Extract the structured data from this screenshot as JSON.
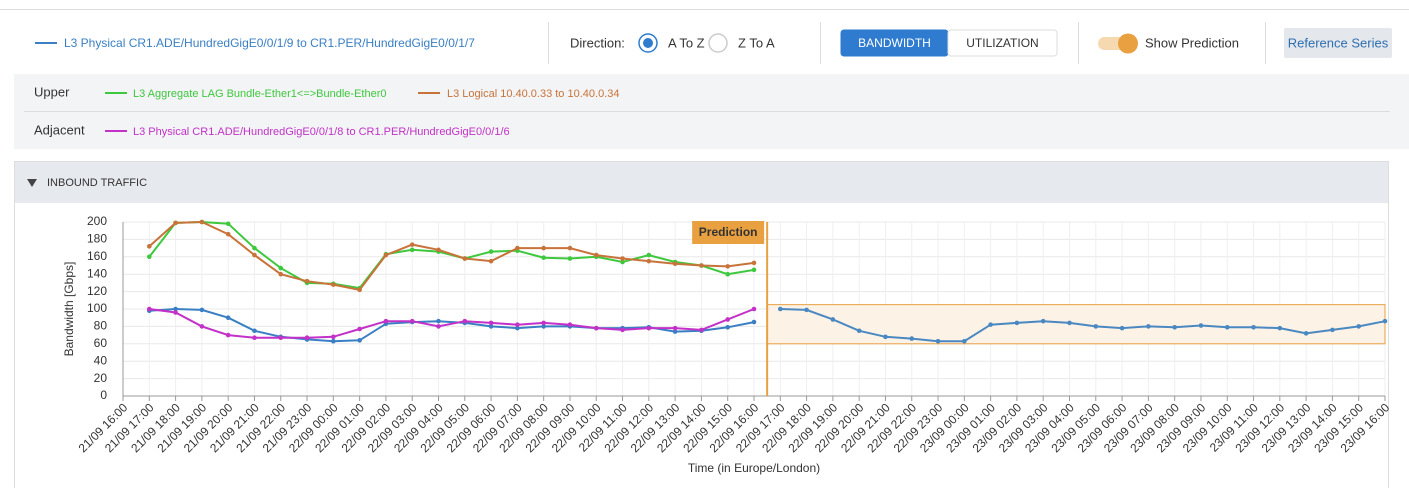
{
  "toolbar": {
    "direction_label": "Direction:",
    "directions": [
      "A To Z",
      "Z To A"
    ],
    "selected_direction": 0,
    "modes": [
      "BANDWIDTH",
      "UTILIZATION"
    ],
    "selected_mode": 0,
    "prediction_toggle": "Show Prediction",
    "reference_button": "Reference Series"
  },
  "related": {
    "upper_label": "Upper",
    "adjacent_label": "Adjacent"
  },
  "panel": {
    "title": "INBOUND TRAFFIC"
  },
  "chart_data": {
    "type": "line",
    "y_label": "Bandwidth [Gbps]",
    "x_label": "Time (in Europe/London)",
    "x": [
      "21/09 17:00",
      "21/09 18:00",
      "21/09 19:00",
      "21/09 20:00",
      "21/09 21:00",
      "21/09 22:00",
      "21/09 23:00",
      "22/09 00:00",
      "22/09 01:00",
      "22/09 02:00",
      "22/09 03:00",
      "22/09 04:00",
      "22/09 05:00",
      "22/09 06:00",
      "22/09 07:00",
      "22/09 08:00",
      "22/09 09:00",
      "22/09 10:00",
      "22/09 11:00",
      "22/09 12:00",
      "22/09 13:00",
      "22/09 14:00",
      "22/09 15:00",
      "22/09 16:00",
      "22/09 17:00",
      "22/09 18:00",
      "22/09 19:00",
      "22/09 20:00",
      "22/09 21:00",
      "22/09 22:00",
      "22/09 23:00",
      "23/09 00:00",
      "23/09 01:00",
      "23/09 02:00",
      "23/09 03:00",
      "23/09 04:00",
      "23/09 05:00",
      "23/09 06:00",
      "23/09 07:00",
      "23/09 08:00",
      "23/09 09:00",
      "23/09 10:00",
      "23/09 11:00",
      "23/09 12:00",
      "23/09 13:00",
      "23/09 14:00",
      "23/09 15:00",
      "23/09 16:00"
    ],
    "xlim": [
      "21/09 16:00",
      "23/09 16:00"
    ],
    "xticks": [
      "21/09 16:00",
      "21/09 17:00",
      "21/09 18:00",
      "21/09 19:00",
      "21/09 20:00",
      "21/09 21:00",
      "21/09 22:00",
      "21/09 23:00",
      "22/09 00:00",
      "22/09 01:00",
      "22/09 02:00",
      "22/09 03:00",
      "22/09 04:00",
      "22/09 05:00",
      "22/09 06:00",
      "22/09 07:00",
      "22/09 08:00",
      "22/09 09:00",
      "22/09 10:00",
      "22/09 11:00",
      "22/09 12:00",
      "22/09 13:00",
      "22/09 14:00",
      "22/09 15:00",
      "22/09 16:00",
      "22/09 17:00",
      "22/09 18:00",
      "22/09 19:00",
      "22/09 20:00",
      "22/09 21:00",
      "22/09 22:00",
      "22/09 23:00",
      "23/09 00:00",
      "23/09 01:00",
      "23/09 02:00",
      "23/09 03:00",
      "23/09 04:00",
      "23/09 05:00",
      "23/09 06:00",
      "23/09 07:00",
      "23/09 08:00",
      "23/09 09:00",
      "23/09 10:00",
      "23/09 11:00",
      "23/09 12:00",
      "23/09 13:00",
      "23/09 14:00",
      "23/09 15:00",
      "23/09 16:00"
    ],
    "ylim": [
      0,
      200
    ],
    "yticks": [
      0,
      20,
      40,
      60,
      80,
      100,
      120,
      140,
      160,
      180,
      200
    ],
    "grid": true,
    "series": [
      {
        "name": "L3 Physical CR1.ADE/HundredGigE0/0/1/9 to CR1.PER/HundredGigE0/0/1/7",
        "color": "#3a7fc4",
        "values": [
          98,
          100,
          99,
          90,
          75,
          68,
          65,
          63,
          64,
          83,
          85,
          86,
          84,
          80,
          78,
          80,
          80,
          78,
          78,
          79,
          74,
          75,
          79,
          85,
          null,
          null,
          null,
          null,
          null,
          null,
          null,
          null,
          null,
          null,
          null,
          null,
          null,
          null,
          null,
          null,
          null,
          null,
          null,
          null,
          null,
          null,
          null,
          null
        ]
      },
      {
        "name": "L3 Aggregate LAG Bundle-Ether1<=>Bundle-Ether0",
        "color": "#3ec83e",
        "values": [
          160,
          199,
          200,
          198,
          170,
          147,
          130,
          129,
          124,
          163,
          168,
          166,
          158,
          166,
          167,
          159,
          158,
          160,
          154,
          162,
          154,
          150,
          140,
          145,
          null,
          null,
          null,
          null,
          null,
          null,
          null,
          null,
          null,
          null,
          null,
          null,
          null,
          null,
          null,
          null,
          null,
          null,
          null,
          null,
          null,
          null,
          null,
          null
        ]
      },
      {
        "name": "L3 Logical 10.40.0.33 to 10.40.0.34",
        "color": "#c8733a",
        "values": [
          172,
          199,
          200,
          186,
          162,
          140,
          132,
          128,
          122,
          162,
          174,
          168,
          158,
          155,
          170,
          170,
          170,
          162,
          158,
          155,
          152,
          150,
          149,
          153,
          null,
          null,
          null,
          null,
          null,
          null,
          null,
          null,
          null,
          null,
          null,
          null,
          null,
          null,
          null,
          null,
          null,
          null,
          null,
          null,
          null,
          null,
          null,
          null
        ]
      },
      {
        "name": "L3 Physical CR1.ADE/HundredGigE0/0/1/8 to CR1.PER/HundredGigE0/0/1/6",
        "color": "#c331c8",
        "values": [
          100,
          96,
          80,
          70,
          67,
          67,
          67,
          68,
          77,
          86,
          86,
          80,
          86,
          84,
          82,
          84,
          82,
          78,
          76,
          78,
          78,
          76,
          88,
          100,
          null,
          null,
          null,
          null,
          null,
          null,
          null,
          null,
          null,
          null,
          null,
          null,
          null,
          null,
          null,
          null,
          null,
          null,
          null,
          null,
          null,
          null,
          null,
          null
        ]
      },
      {
        "color": "#4a88c2",
        "values": [
          null,
          null,
          null,
          null,
          null,
          null,
          null,
          null,
          null,
          null,
          null,
          null,
          null,
          null,
          null,
          null,
          null,
          null,
          null,
          null,
          null,
          null,
          null,
          null,
          100,
          99,
          88,
          75,
          68,
          66,
          63,
          63,
          82,
          84,
          86,
          84,
          80,
          78,
          80,
          79,
          81,
          79,
          79,
          78,
          72,
          76,
          80,
          86
        ]
      }
    ],
    "prediction": {
      "label": "Prediction",
      "x": "22/09 16:30",
      "color": "#e8a040"
    },
    "band": {
      "x": [
        "22/09 16:30",
        "23/09 16:00"
      ],
      "y": [
        60,
        105
      ],
      "color": "#e8a040"
    }
  }
}
